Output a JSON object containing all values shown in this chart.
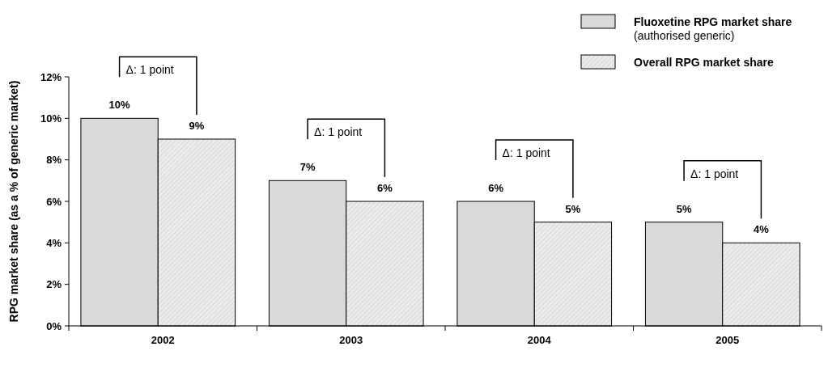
{
  "chart_data": {
    "type": "bar",
    "ylabel": "RPG market share  (as a % of generic market)",
    "categories": [
      "2002",
      "2003",
      "2004",
      "2005"
    ],
    "series": [
      {
        "name": "Fluoxetine RPG market share (authorised generic)",
        "color": "#d9d9d9",
        "values": [
          10,
          7,
          6,
          5
        ]
      },
      {
        "name": "Overall RPG market share",
        "color": "#ececec",
        "values": [
          9,
          6,
          5,
          4
        ]
      }
    ],
    "ylim": [
      0,
      12
    ],
    "yticks": [
      {
        "value": 0,
        "label": "0%"
      },
      {
        "value": 2,
        "label": "2%"
      },
      {
        "value": 4,
        "label": "4%"
      },
      {
        "value": 6,
        "label": "6%"
      },
      {
        "value": 8,
        "label": "8%"
      },
      {
        "value": 10,
        "label": "10%"
      },
      {
        "value": 12,
        "label": "12%"
      }
    ],
    "value_labels": [
      [
        "10%",
        "7%",
        "6%",
        "5%"
      ],
      [
        "9%",
        "6%",
        "5%",
        "4%"
      ]
    ],
    "annotations": [
      "Δ: 1 point",
      "Δ: 1 point",
      "Δ: 1 point",
      "Δ: 1 point"
    ],
    "legend": "top right"
  }
}
